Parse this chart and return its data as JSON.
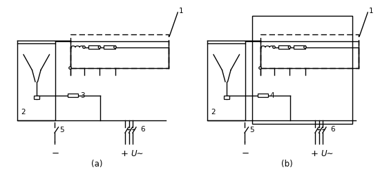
{
  "bg": "#ffffff",
  "lc": "#000000",
  "lw": 1.0,
  "fs": 7.5,
  "label_a": "(a)",
  "label_b": "(b)",
  "minus": "−",
  "plus": "+",
  "u": "U∼"
}
